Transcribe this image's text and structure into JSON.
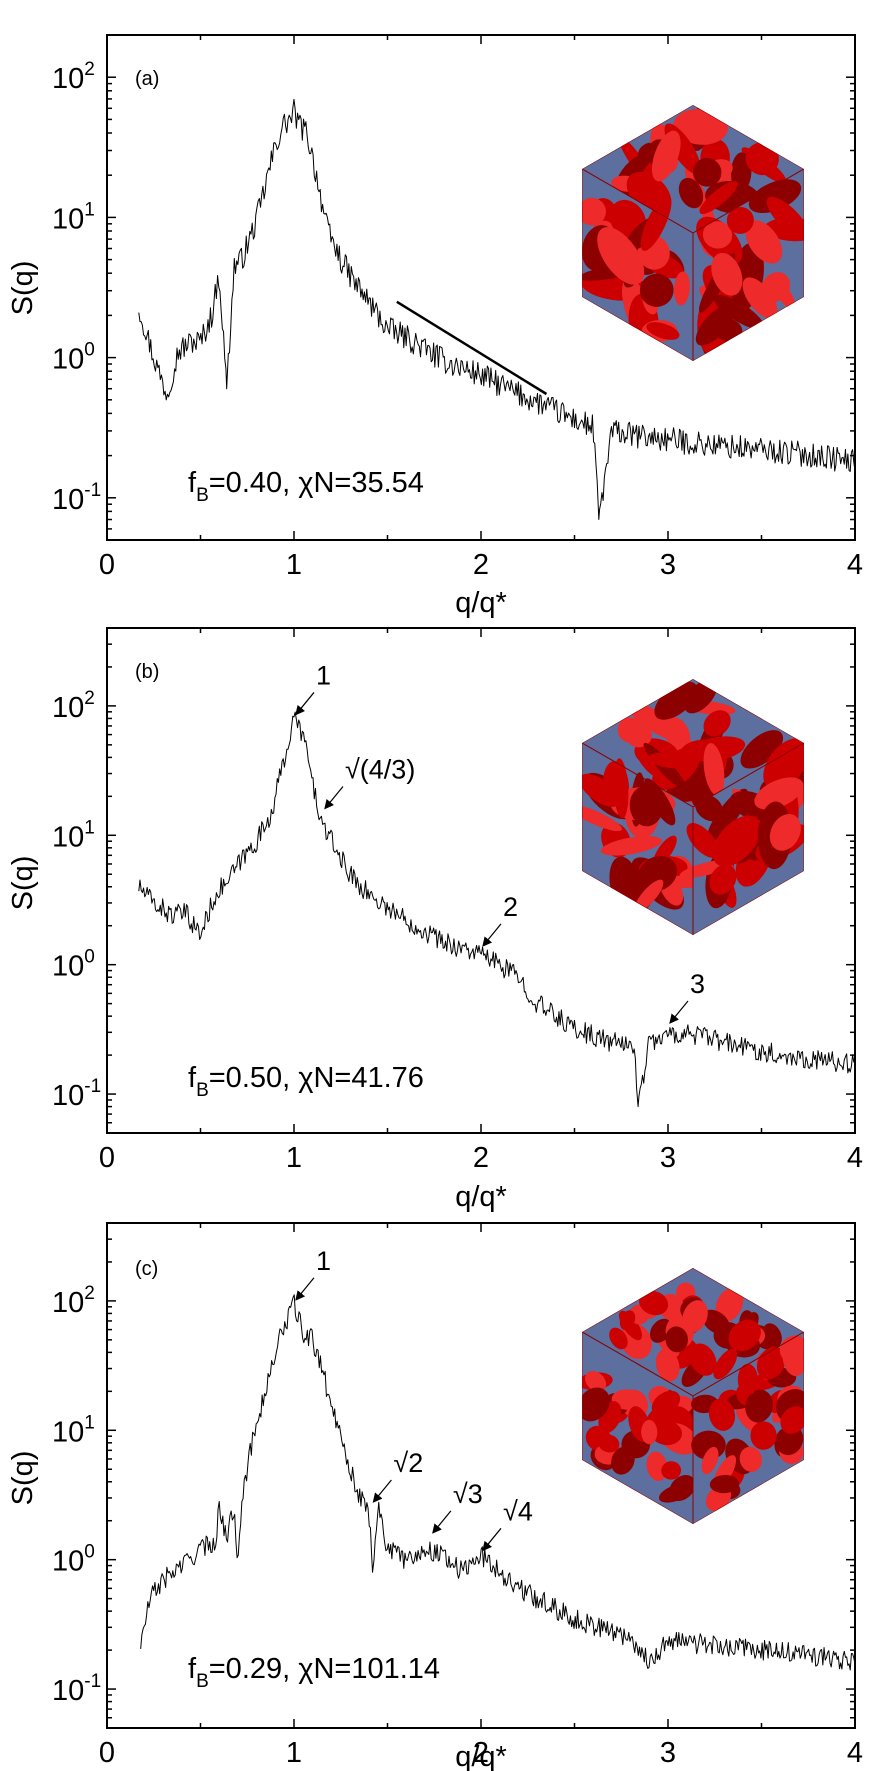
{
  "colors": {
    "line": "#000000",
    "inset_red": "#cc0000",
    "inset_red_light": "#ee2a2a",
    "inset_red_dark": "#8c0000",
    "inset_blue": "#5c6f9e"
  },
  "icons": [
    "block-copolymer-morphology-cube"
  ],
  "chart_data": [
    {
      "type": "line",
      "panel": "(a)",
      "params": {
        "f_symbol": "f",
        "f_sub": "B",
        "text": "=0.40, χN=35.54"
      },
      "xlabel": "q/q*",
      "ylabel": "S(q)",
      "xlim": [
        0,
        4
      ],
      "ylim": [
        0.05,
        200
      ],
      "yscale": "log",
      "xticks": [
        "0",
        "1",
        "2",
        "3",
        "4"
      ],
      "yticks": [
        {
          "base": "10",
          "exp": "2"
        },
        {
          "base": "10",
          "exp": "1"
        },
        {
          "base": "10",
          "exp": "0"
        },
        {
          "base": "10",
          "exp": "-1"
        }
      ],
      "series": [
        {
          "x": [
            0.17,
            0.25,
            0.32,
            0.38,
            0.45,
            0.5,
            0.56,
            0.6,
            0.64,
            0.68,
            0.72,
            0.78,
            0.82,
            0.86,
            0.9,
            0.94,
            0.98,
            1.0,
            1.03,
            1.07,
            1.12,
            1.18,
            1.25,
            1.32,
            1.4,
            1.5,
            1.6,
            1.8,
            2.0,
            2.2,
            2.35,
            2.5,
            2.6,
            2.63,
            2.7,
            2.8,
            3.0,
            3.2,
            3.5,
            3.8,
            4.0
          ],
          "y": [
            2.3,
            1.0,
            0.55,
            1.1,
            1.3,
            1.3,
            2.0,
            4.0,
            0.6,
            4.5,
            5.0,
            8.0,
            12,
            20,
            32,
            45,
            50,
            57,
            45,
            40,
            20,
            8,
            5,
            3.5,
            2.5,
            1.6,
            1.4,
            0.95,
            0.75,
            0.55,
            0.45,
            0.36,
            0.32,
            0.07,
            0.3,
            0.28,
            0.26,
            0.24,
            0.22,
            0.2,
            0.18
          ],
          "noise": 0.09
        }
      ],
      "guide_line": {
        "x": [
          1.55,
          2.35
        ],
        "y": [
          2.5,
          0.55
        ]
      }
    },
    {
      "type": "line",
      "panel": "(b)",
      "params": {
        "f_symbol": "f",
        "f_sub": "B",
        "text": "=0.50, χN=41.76"
      },
      "xlabel": "q/q*",
      "ylabel": "S(q)",
      "xlim": [
        0,
        4
      ],
      "ylim": [
        0.05,
        400
      ],
      "yscale": "log",
      "xticks": [
        "0",
        "1",
        "2",
        "3",
        "4"
      ],
      "yticks": [
        {
          "base": "10",
          "exp": "2"
        },
        {
          "base": "10",
          "exp": "1"
        },
        {
          "base": "10",
          "exp": "0"
        },
        {
          "base": "10",
          "exp": "-1"
        }
      ],
      "series": [
        {
          "x": [
            0.17,
            0.25,
            0.35,
            0.42,
            0.5,
            0.58,
            0.65,
            0.72,
            0.8,
            0.88,
            0.95,
            1.0,
            1.05,
            1.1,
            1.15,
            1.2,
            1.3,
            1.4,
            1.6,
            1.8,
            2.0,
            2.1,
            2.2,
            2.3,
            2.5,
            2.7,
            2.82,
            2.84,
            2.9,
            3.0,
            3.1,
            3.3,
            3.6,
            4.0
          ],
          "y": [
            4.0,
            3.0,
            2.4,
            2.5,
            1.7,
            3.5,
            4.5,
            6.5,
            9.0,
            15,
            40,
            80,
            60,
            25,
            12,
            9,
            5,
            3.5,
            2.2,
            1.5,
            1.2,
            1.0,
            0.8,
            0.5,
            0.32,
            0.25,
            0.24,
            0.08,
            0.26,
            0.28,
            0.3,
            0.25,
            0.2,
            0.17
          ],
          "noise": 0.08
        }
      ],
      "annotations": [
        {
          "label": "1",
          "x": 1.0,
          "y": 80
        },
        {
          "label": "√(4/3)",
          "x": 1.155,
          "y": 15
        },
        {
          "label": "2",
          "x": 2.0,
          "y": 1.3
        },
        {
          "label": "3",
          "x": 3.0,
          "y": 0.33
        }
      ]
    },
    {
      "type": "line",
      "panel": "(c)",
      "params": {
        "f_symbol": "f",
        "f_sub": "B",
        "text": "=0.29, χN=101.14"
      },
      "xlabel": "q/q*",
      "ylabel": "S(q)",
      "xlim": [
        0,
        4
      ],
      "ylim": [
        0.05,
        400
      ],
      "yscale": "log",
      "xticks": [
        "0",
        "1",
        "2",
        "3",
        "4"
      ],
      "yticks": [
        {
          "base": "10",
          "exp": "2"
        },
        {
          "base": "10",
          "exp": "1"
        },
        {
          "base": "10",
          "exp": "0"
        },
        {
          "base": "10",
          "exp": "-1"
        }
      ],
      "series": [
        {
          "x": [
            0.18,
            0.23,
            0.3,
            0.4,
            0.5,
            0.58,
            0.6,
            0.64,
            0.68,
            0.7,
            0.72,
            0.76,
            0.8,
            0.85,
            0.9,
            0.95,
            1.0,
            1.05,
            1.1,
            1.15,
            1.2,
            1.25,
            1.3,
            1.35,
            1.4,
            1.42,
            1.45,
            1.5,
            1.6,
            1.7,
            1.8,
            1.9,
            2.0,
            2.2,
            2.5,
            2.8,
            2.9,
            3.0,
            3.2,
            3.5,
            3.8,
            4.0
          ],
          "y": [
            0.22,
            0.5,
            0.7,
            0.9,
            1.2,
            1.4,
            2.5,
            1.5,
            2.5,
            1.0,
            3.0,
            6.0,
            12,
            20,
            40,
            65,
            95,
            55,
            50,
            30,
            15,
            10,
            5,
            3.0,
            2.5,
            0.8,
            2.8,
            1.2,
            1.0,
            1.2,
            1.1,
            0.8,
            1.1,
            0.6,
            0.35,
            0.25,
            0.16,
            0.24,
            0.22,
            0.2,
            0.18,
            0.16
          ],
          "noise": 0.08
        }
      ],
      "annotations": [
        {
          "label": "1",
          "x": 1.0,
          "y": 95
        },
        {
          "label": "√2",
          "x": 1.414,
          "y": 2.6
        },
        {
          "label": "√3",
          "x": 1.732,
          "y": 1.5
        },
        {
          "label": "√4",
          "x": 2.0,
          "y": 1.1
        }
      ]
    }
  ]
}
